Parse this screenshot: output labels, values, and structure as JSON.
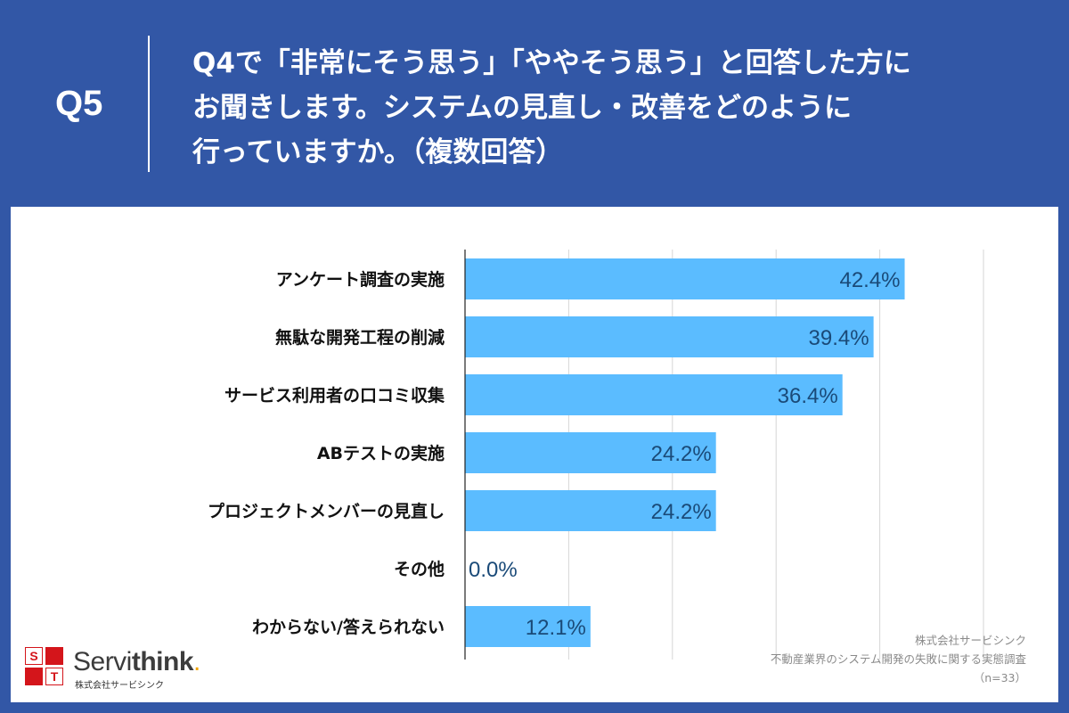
{
  "header": {
    "q_label": "Q5",
    "question_lines": [
      "Q4で「非常にそう思う」「ややそう思う」と回答した方に",
      "お聞きします。システムの見直し・改善をどのように",
      "行っていますか。（複数回答）"
    ]
  },
  "chart_data": {
    "type": "bar",
    "orientation": "horizontal",
    "categories": [
      "アンケート調査の実施",
      "無駄な開発工程の削減",
      "サービス利用者の口コミ収集",
      "ABテストの実施",
      "プロジェクトメンバーの見直し",
      "その他",
      "わからない/答えられない"
    ],
    "values": [
      42.4,
      39.4,
      36.4,
      24.2,
      24.2,
      0.0,
      12.1
    ],
    "value_labels": [
      "42.4%",
      "39.4%",
      "36.4%",
      "24.2%",
      "24.2%",
      "0.0%",
      "12.1%"
    ],
    "xlim": [
      0,
      50
    ],
    "grid": true,
    "bar_color": "#5bbcff",
    "label_color": "#1a4a78",
    "title": "",
    "xlabel": "",
    "ylabel": ""
  },
  "footer": {
    "company": "株式会社サービシンク",
    "survey": "不動産業界のシステム開発の失敗に関する実態調査",
    "n": "（n=33）"
  },
  "logo": {
    "letters": [
      "S",
      "T"
    ],
    "name_regular": "Servi",
    "name_bold": "think",
    "name_dot": ".",
    "sub": "株式会社サービシンク",
    "brand_red": "#d4151b",
    "brand_orange": "#f2a500"
  }
}
